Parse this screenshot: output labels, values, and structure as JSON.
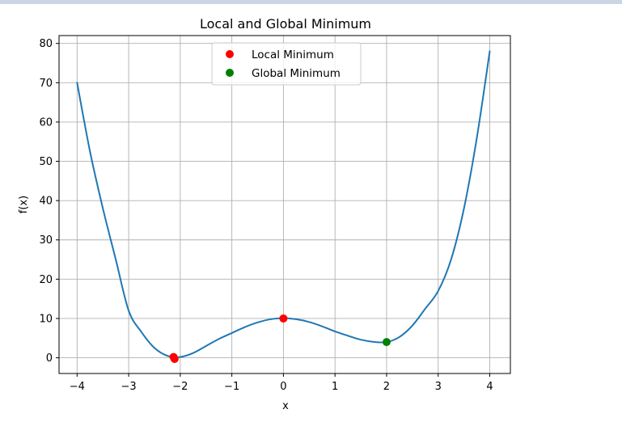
{
  "chart_data": {
    "type": "line",
    "title": "Local and Global Minimum",
    "xlabel": "x",
    "ylabel": "f(x)",
    "xlim": [
      -4.35,
      4.4
    ],
    "ylim": [
      -4,
      82
    ],
    "grid": true,
    "legend_position": "top-center",
    "x_ticks": [
      -4,
      -3,
      -2,
      -1,
      0,
      1,
      2,
      3,
      4
    ],
    "x_tick_labels": [
      "−4",
      "−3",
      "−2",
      "−1",
      "0",
      "1",
      "2",
      "3",
      "4"
    ],
    "y_ticks": [
      0,
      10,
      20,
      30,
      40,
      50,
      60,
      70,
      80
    ],
    "y_tick_labels": [
      "0",
      "10",
      "20",
      "30",
      "40",
      "50",
      "60",
      "70",
      "80"
    ],
    "series": [
      {
        "color": "#1f77b4",
        "x": [
          -4.0,
          -3.75,
          -3.5,
          -3.25,
          -3.0,
          -2.75,
          -2.5,
          -2.25,
          -2.0,
          -1.75,
          -1.5,
          -1.25,
          -1.0,
          -0.75,
          -0.5,
          -0.25,
          0.0,
          0.25,
          0.5,
          0.75,
          1.0,
          1.25,
          1.5,
          1.75,
          2.0,
          2.25,
          2.5,
          2.75,
          3.0,
          3.25,
          3.5,
          3.75,
          4.0
        ],
        "y": [
          70,
          52.5,
          38,
          25,
          12,
          6.5,
          2.5,
          0.5,
          0.2,
          1.2,
          3.0,
          4.8,
          6.3,
          7.8,
          9.0,
          9.8,
          10.1,
          9.8,
          9.1,
          8.0,
          6.7,
          5.6,
          4.6,
          4.05,
          4.0,
          5.3,
          8.2,
          12.5,
          17.0,
          25.0,
          38.0,
          56.0,
          78.0
        ]
      }
    ],
    "scatter": [
      {
        "name": "Local Minimum",
        "color": "#ff0000",
        "points": [
          {
            "x": 0,
            "y": 10
          },
          {
            "x": -2.13,
            "y": 0.2
          },
          {
            "x": -2.11,
            "y": -0.3
          }
        ]
      },
      {
        "name": "Global Minimum",
        "color": "#008000",
        "points": [
          {
            "x": 2,
            "y": 4
          }
        ]
      }
    ]
  }
}
